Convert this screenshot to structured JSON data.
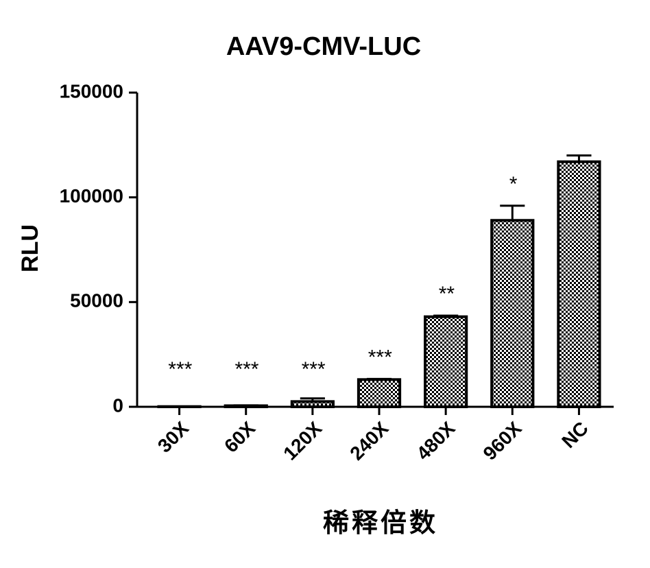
{
  "chart_data": {
    "type": "bar",
    "title": "AAV9-CMV-LUC",
    "ylabel": "RLU",
    "xlabel": "稀释倍数",
    "categories": [
      "30X",
      "60X",
      "120X",
      "240X",
      "480X",
      "960X",
      "NC"
    ],
    "values": [
      100,
      500,
      2500,
      13000,
      43000,
      89000,
      117000
    ],
    "errors": [
      50,
      200,
      1500,
      300,
      500,
      7000,
      3000
    ],
    "annotations": [
      "***",
      "***",
      "***",
      "***",
      "**",
      "*",
      null
    ],
    "color": "#000000",
    "ylim": [
      0,
      150000
    ],
    "yticks": [
      0,
      50000,
      100000,
      150000
    ],
    "grid": false
  }
}
